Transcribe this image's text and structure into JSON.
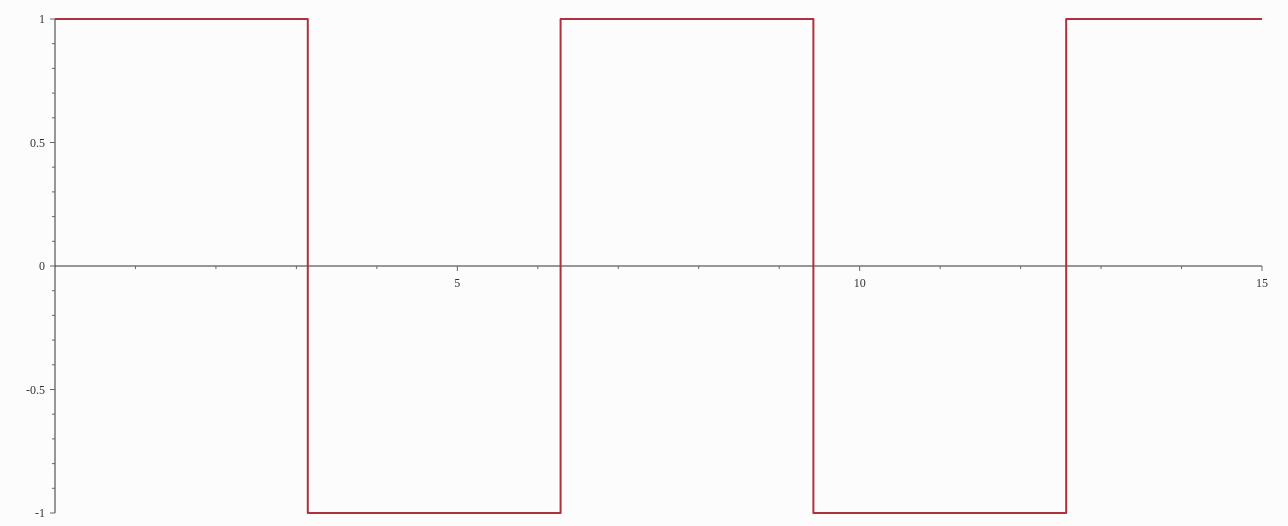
{
  "chart_data": {
    "type": "step",
    "x": [
      0,
      3.1416,
      6.2832,
      9.4248,
      12.5664,
      15
    ],
    "series": [
      {
        "color": "#b0303c",
        "values": [
          1,
          -1,
          1,
          -1,
          1,
          1
        ]
      }
    ],
    "xlim": [
      0,
      15
    ],
    "ylim": [
      -1,
      1
    ],
    "xticks": [
      {
        "value": 1,
        "label": null
      },
      {
        "value": 2,
        "label": null
      },
      {
        "value": 3,
        "label": null
      },
      {
        "value": 4,
        "label": null
      },
      5,
      {
        "value": 6,
        "label": null
      },
      {
        "value": 7,
        "label": null
      },
      {
        "value": 8,
        "label": null
      },
      {
        "value": 9,
        "label": null
      },
      10,
      {
        "value": 11,
        "label": null
      },
      {
        "value": 12,
        "label": null
      },
      {
        "value": 13,
        "label": null
      },
      {
        "value": 14,
        "label": null
      },
      15
    ],
    "yticks": [
      -1,
      {
        "value": -0.9,
        "label": null
      },
      {
        "value": -0.8,
        "label": null
      },
      {
        "value": -0.7,
        "label": null
      },
      {
        "value": -0.6,
        "label": null
      },
      -0.5,
      {
        "value": -0.4,
        "label": null
      },
      {
        "value": -0.3,
        "label": null
      },
      {
        "value": -0.2,
        "label": null
      },
      {
        "value": -0.1,
        "label": null
      },
      0,
      {
        "value": 0.1,
        "label": null
      },
      {
        "value": 0.2,
        "label": null
      },
      {
        "value": 0.3,
        "label": null
      },
      {
        "value": 0.4,
        "label": null
      },
      0.5,
      {
        "value": 0.6,
        "label": null
      },
      {
        "value": 0.7,
        "label": null
      },
      {
        "value": 0.8,
        "label": null
      },
      {
        "value": 0.9,
        "label": null
      },
      1
    ],
    "grid": false
  }
}
